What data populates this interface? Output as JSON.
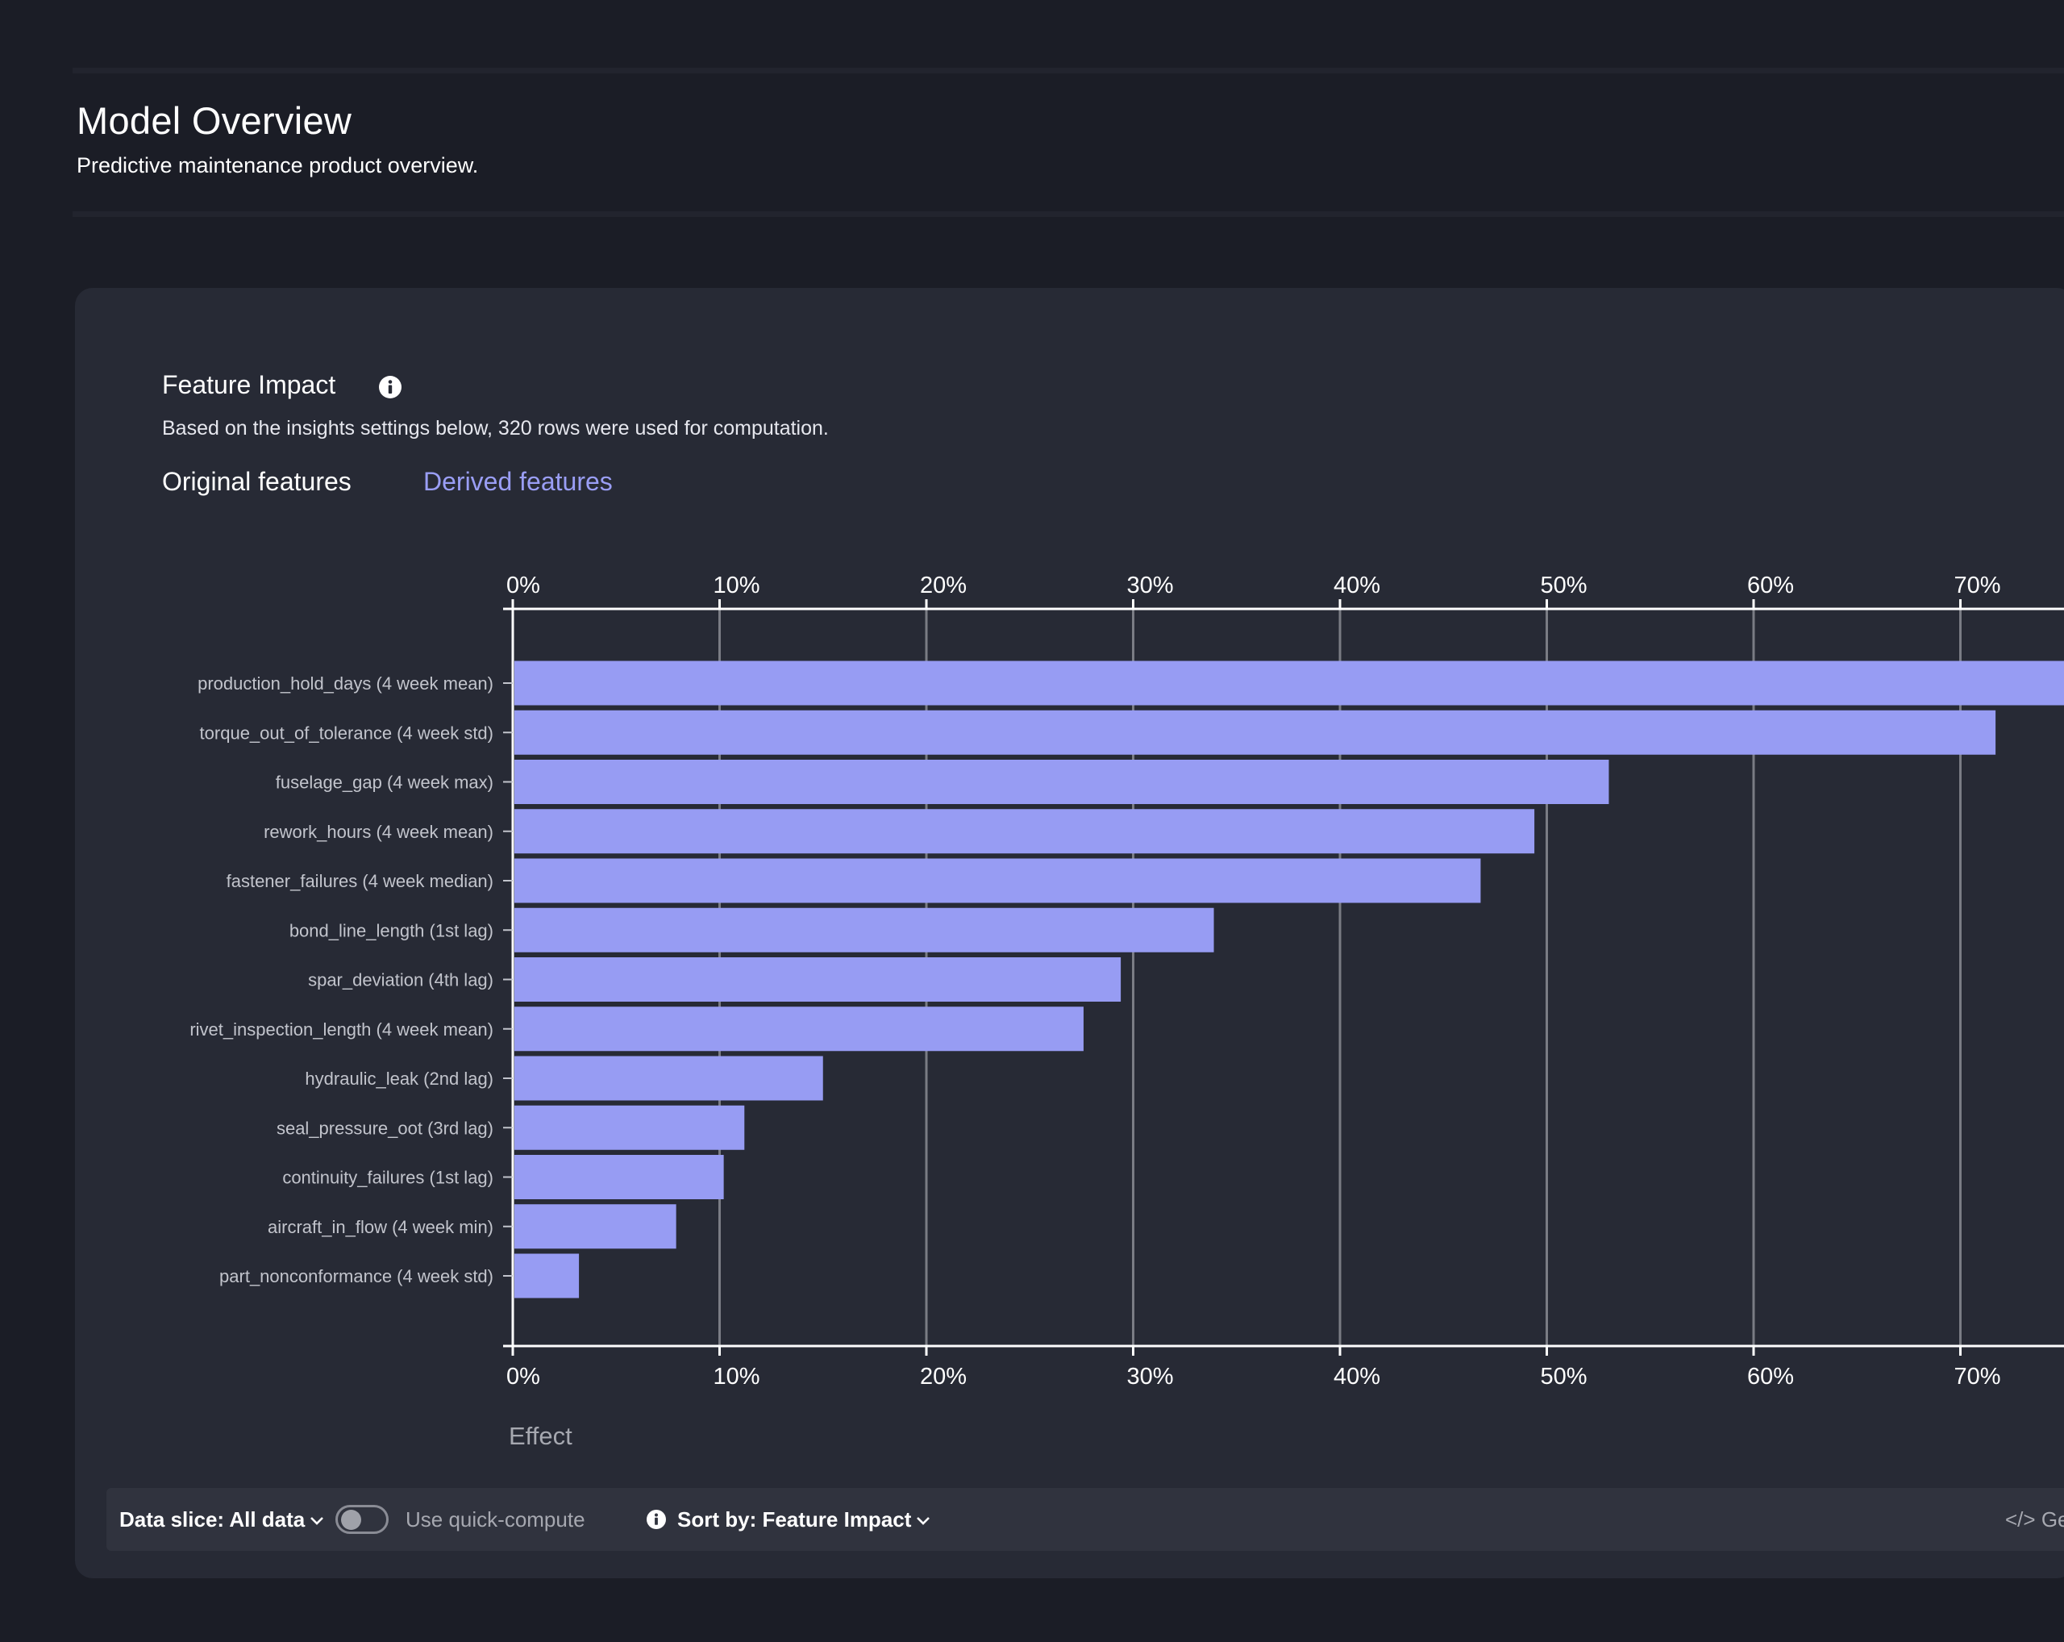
{
  "header": {
    "title": "Model Overview",
    "subtitle": "Predictive maintenance product overview."
  },
  "card": {
    "title": "Feature Impact",
    "description": "Based on the insights settings below, 320 rows were used for computation.",
    "tabs": [
      {
        "label": "Original features",
        "active": true
      },
      {
        "label": "Derived features",
        "active": false
      }
    ]
  },
  "toolbar": {
    "data_slice": "Data slice: All data",
    "quick_compute_label": "Use quick-compute",
    "quick_compute_on": false,
    "sort_by": "Sort by: Feature Impact",
    "right_action": "</> Ge"
  },
  "colors": {
    "bar": "#979cf3",
    "link": "#9a9ef5",
    "background": "#1b1d26",
    "card": "#272a35"
  },
  "chart_data": {
    "type": "bar",
    "orientation": "horizontal",
    "categories": [
      "production_hold_days (4 week mean)",
      "torque_out_of_tolerance (4 week std)",
      "fuselage_gap (4 week max)",
      "rework_hours (4 week mean)",
      "fastener_failures (4 week median)",
      "bond_line_length (1st lag)",
      "spar_deviation (4th lag)",
      "rivet_inspection_length (4 week mean)",
      "hydraulic_leak (2nd lag)",
      "seal_pressure_oot (3rd lag)",
      "continuity_failures (1st lag)",
      "aircraft_in_flow (4 week min)",
      "part_nonconformance (4 week std)"
    ],
    "values": [
      100,
      71.7,
      53.0,
      49.4,
      46.8,
      33.9,
      29.4,
      27.6,
      15.0,
      11.2,
      10.2,
      7.9,
      3.2
    ],
    "value_unit": "%",
    "xlabel": "Effect",
    "xticks": [
      "0%",
      "10%",
      "20%",
      "30%",
      "40%",
      "50%",
      "60%",
      "70%"
    ],
    "xlim": [
      0,
      100
    ],
    "grid": true
  }
}
